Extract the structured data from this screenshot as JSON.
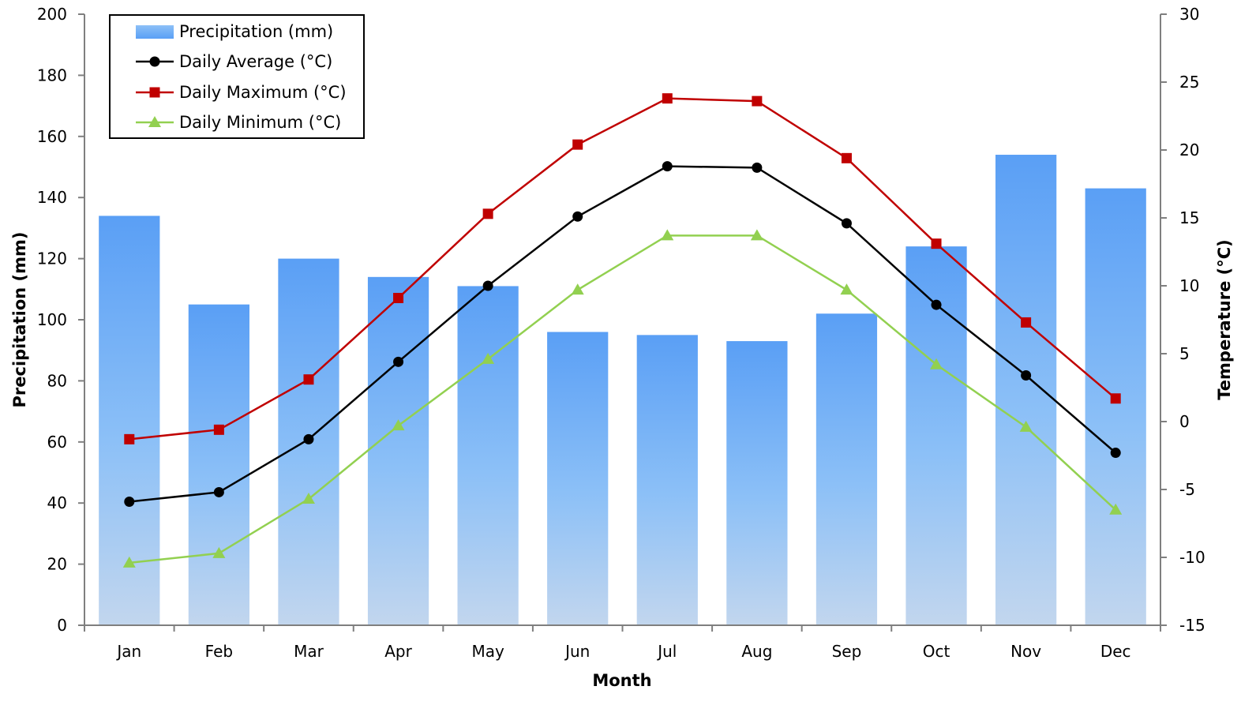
{
  "chart_data": {
    "type": "bar",
    "title": "",
    "xlabel": "Month",
    "ylabel": "Precipitation (mm)",
    "y2label": "Temperature (°C)",
    "ylim": [
      0,
      200
    ],
    "y2lim": [
      -15,
      30
    ],
    "yticks": [
      "0",
      "20",
      "40",
      "60",
      "80",
      "100",
      "120",
      "140",
      "160",
      "180",
      "200"
    ],
    "y2ticks": [
      "-15",
      "-10",
      "-5",
      "0",
      "5",
      "10",
      "15",
      "20",
      "25",
      "30"
    ],
    "categories": [
      "Jan",
      "Feb",
      "Mar",
      "Apr",
      "May",
      "Jun",
      "Jul",
      "Aug",
      "Sep",
      "Oct",
      "Nov",
      "Dec"
    ],
    "grid": false,
    "legend_position": "top-left",
    "series": [
      {
        "name": "Precipitation (mm)",
        "type": "bar",
        "axis": "left",
        "color_top": "#5a9ff5",
        "color_bottom": "#c2d6ee",
        "values": [
          134,
          105,
          120,
          114,
          111,
          96,
          95,
          93,
          102,
          124,
          154,
          143
        ]
      },
      {
        "name": "Daily Average (°C)",
        "type": "line",
        "axis": "right",
        "marker": "circle",
        "color": "#000000",
        "values": [
          -5.9,
          -5.2,
          -1.3,
          4.4,
          10.0,
          15.1,
          18.8,
          18.7,
          14.6,
          8.6,
          3.4,
          -2.3
        ]
      },
      {
        "name": "Daily Maximum (°C)",
        "type": "line",
        "axis": "right",
        "marker": "square",
        "color": "#c00000",
        "values": [
          -1.3,
          -0.6,
          3.1,
          9.1,
          15.3,
          20.4,
          23.8,
          23.6,
          19.4,
          13.1,
          7.3,
          1.7
        ]
      },
      {
        "name": "Daily Minimum (°C)",
        "type": "line",
        "axis": "right",
        "marker": "triangle",
        "color": "#92d050",
        "values": [
          -10.4,
          -9.7,
          -5.7,
          -0.3,
          4.6,
          9.7,
          13.7,
          13.7,
          9.7,
          4.2,
          -0.4,
          -6.5
        ]
      }
    ]
  }
}
